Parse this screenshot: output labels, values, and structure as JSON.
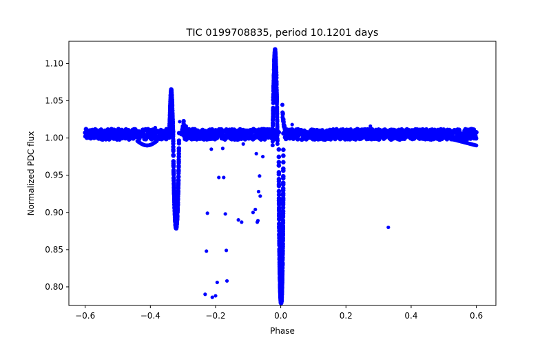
{
  "chart_data": {
    "type": "scatter",
    "title": "TIC 0199708835, period 10.1201 days",
    "xlabel": "Phase",
    "ylabel": "Normalized PDC flux",
    "xlim": [
      -0.65,
      0.66
    ],
    "ylim": [
      0.775,
      1.13
    ],
    "xticks": [
      -0.6,
      -0.4,
      -0.2,
      0.0,
      0.2,
      0.4,
      0.6
    ],
    "xtick_labels": [
      "−0.6",
      "−0.4",
      "−0.2",
      "0.0",
      "0.2",
      "0.4",
      "0.6"
    ],
    "yticks": [
      0.8,
      0.85,
      0.9,
      0.95,
      1.0,
      1.05,
      1.1
    ],
    "ytick_labels": [
      "0.80",
      "0.85",
      "0.90",
      "0.95",
      "1.00",
      "1.05",
      "1.10"
    ],
    "grid": false,
    "marker_color": "#0000ff",
    "series": [
      {
        "baseline": {
          "x_range": [
            -0.6,
            0.6
          ],
          "y_center": 1.005,
          "y_spread": 0.007
        },
        "secondary_eclipse": {
          "phase_center": -0.322,
          "peak_flux": 1.066,
          "min_flux": 0.878
        },
        "primary_eclipse": {
          "phase_center": 0.001,
          "peak_flux": 1.12,
          "min_flux": 0.778
        },
        "points": [
          [
            -0.232,
            0.79
          ],
          [
            -0.228,
            0.848
          ],
          [
            -0.225,
            0.899
          ],
          [
            -0.213,
            0.985
          ],
          [
            -0.21,
            0.786
          ],
          [
            -0.2,
            0.788
          ],
          [
            -0.195,
            0.806
          ],
          [
            -0.19,
            0.947
          ],
          [
            -0.178,
            0.986
          ],
          [
            -0.175,
            0.947
          ],
          [
            -0.17,
            0.898
          ],
          [
            -0.167,
            0.849
          ],
          [
            -0.165,
            0.808
          ],
          [
            -0.13,
            0.89
          ],
          [
            -0.12,
            0.887
          ],
          [
            -0.115,
            0.992
          ],
          [
            -0.085,
            0.9
          ],
          [
            -0.078,
            0.904
          ],
          [
            -0.075,
            0.979
          ],
          [
            -0.072,
            0.887
          ],
          [
            -0.07,
            0.889
          ],
          [
            -0.068,
            0.928
          ],
          [
            -0.065,
            0.949
          ],
          [
            -0.063,
            0.922
          ],
          [
            -0.055,
            0.975
          ],
          [
            0.33,
            0.88
          ],
          [
            -0.25,
            1.008
          ],
          [
            -0.35,
            1.012
          ],
          [
            0.215,
            1.012
          ],
          [
            0.275,
            1.016
          ],
          [
            0.3,
            1.012
          ],
          [
            -0.31,
            1.022
          ],
          [
            -0.29,
            1.016
          ],
          [
            0.035,
            1.018
          ],
          [
            -0.385,
            1.014
          ],
          [
            0.1,
            1.011
          ]
        ]
      }
    ]
  }
}
